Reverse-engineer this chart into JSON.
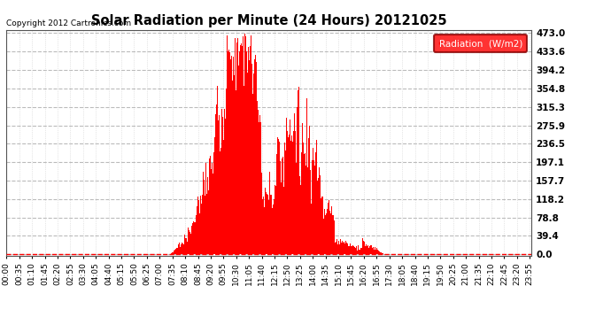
{
  "title": "Solar Radiation per Minute (24 Hours) 20121025",
  "copyright_text": "Copyright 2012 Cartronics.com",
  "legend_label": "Radiation  (W/m2)",
  "background_color": "#ffffff",
  "plot_bg_color": "#ffffff",
  "fill_color": "#ff0000",
  "line_color": "#ff0000",
  "zero_line_color": "#ff0000",
  "grid_color": "#bbbbbb",
  "ytick_labels": [
    "0.0",
    "39.4",
    "78.8",
    "118.2",
    "157.7",
    "197.1",
    "236.5",
    "275.9",
    "315.3",
    "354.8",
    "394.2",
    "433.6",
    "473.0"
  ],
  "ytick_values": [
    0.0,
    39.4,
    78.8,
    118.2,
    157.7,
    197.1,
    236.5,
    275.9,
    315.3,
    354.8,
    394.2,
    433.6,
    473.0
  ],
  "ymax": 480,
  "ymin": -3,
  "total_minutes": 1440,
  "sunrise_minute": 450,
  "sunset_minute": 1035
}
